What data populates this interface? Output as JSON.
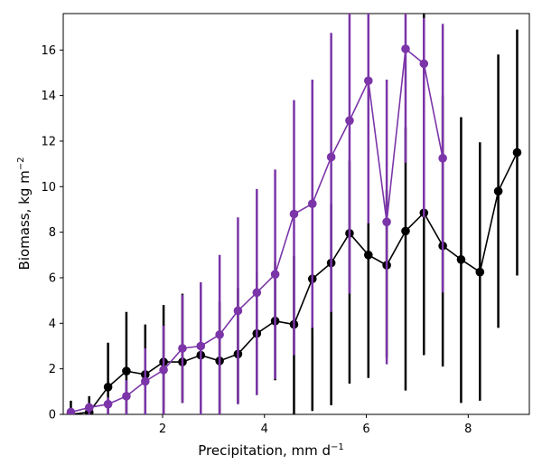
{
  "chart_data": {
    "type": "line",
    "xlabel": "Precipitation,  mm d",
    "xlabel_sup": "−1",
    "ylabel": "Biomass,  kg m",
    "ylabel_sup": "−2",
    "xlim": [
      0.05,
      9.2
    ],
    "ylim": [
      0,
      17.6
    ],
    "xticks": [
      2,
      4,
      6,
      8
    ],
    "yticks": [
      0,
      2,
      4,
      6,
      8,
      10,
      12,
      14,
      16
    ],
    "grid": false,
    "series": [
      {
        "color": "#000000",
        "x": [
          0.2,
          0.56,
          0.93,
          1.29,
          1.66,
          2.02,
          2.39,
          2.75,
          3.12,
          3.48,
          3.85,
          4.21,
          4.58,
          4.94,
          5.31,
          5.67,
          6.04,
          6.4,
          6.77,
          7.13,
          7.5,
          7.86,
          8.23,
          8.59,
          8.96
        ],
        "y": [
          0.0,
          0.1,
          1.2,
          1.9,
          1.75,
          2.3,
          2.3,
          2.6,
          2.35,
          2.65,
          3.55,
          4.1,
          3.95,
          5.95,
          6.65,
          7.95,
          7.0,
          6.55,
          8.05,
          8.85,
          7.4,
          6.8,
          6.25,
          9.8,
          11.5
        ],
        "yerr_low": [
          0.0,
          0.1,
          1.2,
          1.9,
          1.75,
          2.3,
          1.8,
          2.6,
          2.35,
          2.2,
          2.7,
          2.6,
          3.95,
          5.8,
          6.25,
          6.6,
          5.4,
          4.05,
          7.0,
          6.25,
          5.3,
          6.3,
          5.65,
          6.0,
          5.4
        ],
        "yerr_high": [
          0.6,
          0.7,
          1.95,
          2.6,
          2.2,
          2.5,
          3.0,
          3.2,
          2.6,
          2.9,
          2.7,
          2.6,
          3.0,
          2.2,
          2.6,
          3.2,
          1.4,
          3.3,
          4.55,
          8.8,
          6.6,
          6.25,
          5.7,
          6.0,
          5.4
        ]
      },
      {
        "color": "#7b35a8",
        "x": [
          0.2,
          0.56,
          0.93,
          1.29,
          1.66,
          2.02,
          2.39,
          2.75,
          3.12,
          3.48,
          3.85,
          4.21,
          4.58,
          4.94,
          5.31,
          5.67,
          6.04,
          6.4,
          6.77,
          7.13,
          7.5
        ],
        "y": [
          0.1,
          0.3,
          0.45,
          0.8,
          1.45,
          1.95,
          2.9,
          3.0,
          3.5,
          4.55,
          5.35,
          6.15,
          8.8,
          9.25,
          11.3,
          12.9,
          14.65,
          8.45,
          16.05,
          15.4,
          11.25
        ],
        "yerr_low": [
          0.1,
          0.3,
          0.45,
          0.8,
          1.45,
          1.95,
          2.4,
          3.0,
          3.5,
          4.1,
          4.5,
          4.6,
          6.2,
          5.45,
          6.8,
          7.6,
          6.25,
          6.25,
          5.0,
          6.75,
          5.9
        ],
        "yerr_high": [
          0.1,
          0.2,
          0.3,
          0.7,
          1.45,
          1.95,
          2.35,
          2.8,
          3.5,
          4.1,
          4.55,
          4.6,
          5.0,
          5.45,
          5.45,
          5.0,
          4.5,
          6.25,
          5.0,
          2.0,
          5.9
        ]
      }
    ]
  }
}
